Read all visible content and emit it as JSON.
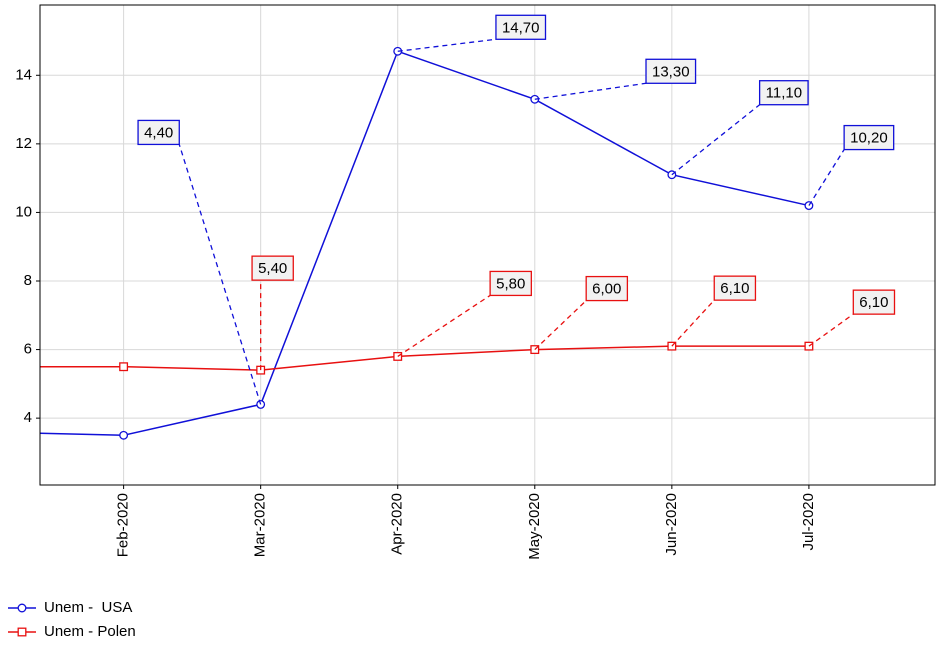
{
  "chart_data": {
    "type": "line",
    "categories": [
      null,
      "Feb-2020",
      "Mar-2020",
      "Apr-2020",
      "May-2020",
      "Jun-2020",
      "Jul-2020"
    ],
    "series": [
      {
        "name": "Unem -  USA",
        "color": "#1010d8",
        "marker": "circle",
        "values": [
          3.6,
          3.5,
          4.4,
          14.7,
          13.3,
          11.1,
          10.2
        ],
        "value_labels": [
          null,
          null,
          "4,40",
          "14,70",
          "13,30",
          "11,10",
          "10,20"
        ]
      },
      {
        "name": "Unem - Polen",
        "color": "#e81010",
        "marker": "square",
        "values": [
          5.5,
          5.5,
          5.4,
          5.8,
          6.0,
          6.1,
          6.1
        ],
        "value_labels": [
          null,
          null,
          "5,40",
          "5,80",
          "6,00",
          "6,10",
          "6,10"
        ]
      }
    ],
    "xlim": [
      0.39,
      6.92
    ],
    "ylim": [
      2.05,
      16.05
    ],
    "yticks": [
      4,
      6,
      8,
      10,
      12,
      14
    ],
    "grid": true,
    "legend": "bottom-left"
  }
}
